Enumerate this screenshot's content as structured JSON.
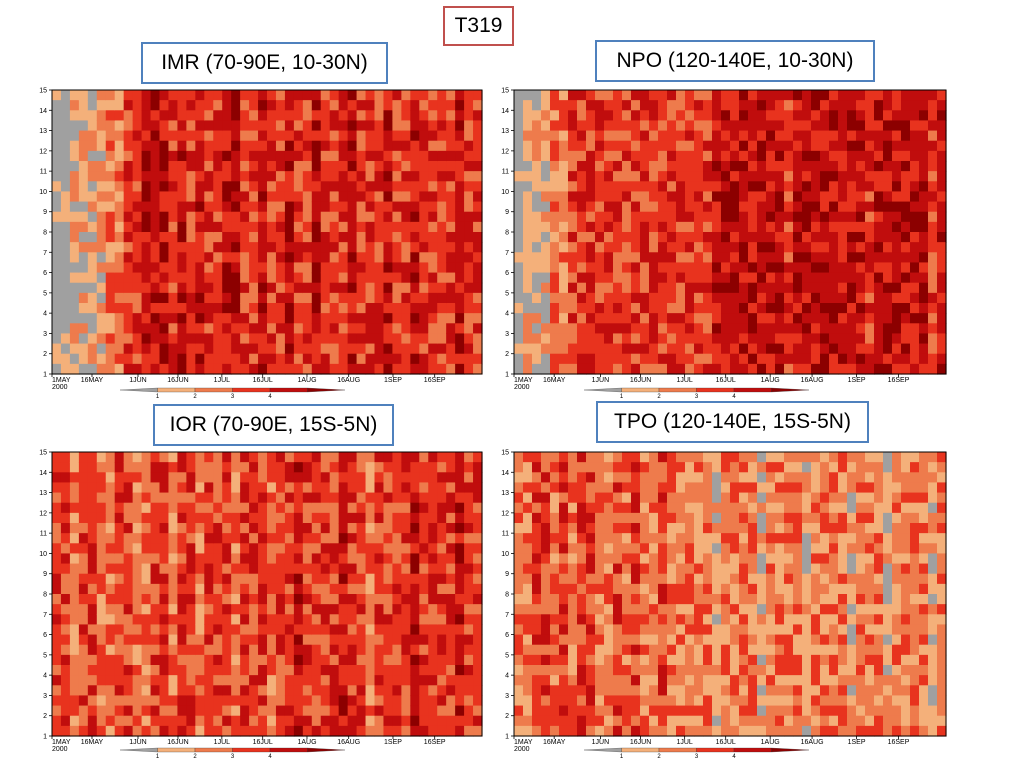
{
  "title": "T319",
  "colors": {
    "title_border": "#c0504d",
    "panel_border": "#4f81bd",
    "levels": [
      "#a0a0a0",
      "#f4b07a",
      "#ee7b4c",
      "#e8331e",
      "#c00d0d",
      "#8c0000"
    ]
  },
  "chart_data": [
    {
      "type": "heatmap",
      "title": "IMR (70-90E, 10-30N)",
      "x_ticks": [
        "1MAY\n2000",
        "16MAY",
        "1JUN",
        "16JUN",
        "1JUL",
        "16JUL",
        "1AUG",
        "16AUG",
        "1SEP",
        "16SEP"
      ],
      "y_ticks": [
        "1",
        "2",
        "3",
        "4",
        "5",
        "6",
        "7",
        "8",
        "9",
        "10",
        "11",
        "12",
        "13",
        "14",
        "15"
      ],
      "ylim": [
        1,
        15
      ],
      "colorbar_labels": [
        "1",
        "2",
        "3",
        "4"
      ],
      "column_intensity": [
        0,
        0,
        1,
        1,
        1,
        1,
        2,
        2,
        3,
        3,
        4,
        4,
        4,
        3,
        4,
        3,
        4,
        3,
        3,
        4,
        4,
        3,
        3,
        4,
        3,
        3,
        4,
        3,
        3,
        4,
        3,
        3,
        3,
        4,
        3,
        3,
        3,
        4,
        3,
        3,
        4,
        3,
        3,
        3,
        3,
        4,
        3,
        3
      ]
    },
    {
      "type": "heatmap",
      "title": "NPO (120-140E, 10-30N)",
      "x_ticks": [
        "1MAY\n2000",
        "16MAY",
        "1JUN",
        "16JUN",
        "1JUL",
        "16JUL",
        "1AUG",
        "16AUG",
        "1SEP",
        "16SEP"
      ],
      "y_ticks": [
        "1",
        "2",
        "3",
        "4",
        "5",
        "6",
        "7",
        "8",
        "9",
        "10",
        "11",
        "12",
        "13",
        "14",
        "15"
      ],
      "ylim": [
        1,
        15
      ],
      "colorbar_labels": [
        "1",
        "2",
        "3",
        "4"
      ],
      "column_intensity": [
        0,
        1,
        1,
        1,
        2,
        2,
        3,
        3,
        3,
        3,
        3,
        3,
        3,
        3,
        3,
        3,
        3,
        3,
        3,
        3,
        3,
        3,
        4,
        4,
        4,
        4,
        4,
        4,
        4,
        4,
        3,
        4,
        4,
        4,
        4,
        4,
        4,
        4,
        4,
        3,
        4,
        4,
        4,
        4,
        4,
        4,
        3,
        4
      ]
    },
    {
      "type": "heatmap",
      "title": "IOR (70-90E, 15S-5N)",
      "x_ticks": [
        "1MAY\n2000",
        "16MAY",
        "1JUN",
        "16JUN",
        "1JUL",
        "16JUL",
        "1AUG",
        "16AUG",
        "1SEP",
        "16SEP"
      ],
      "y_ticks": [
        "1",
        "2",
        "3",
        "4",
        "5",
        "6",
        "7",
        "8",
        "9",
        "10",
        "11",
        "12",
        "13",
        "14",
        "15"
      ],
      "ylim": [
        1,
        15
      ],
      "colorbar_labels": [
        "1",
        "2",
        "3",
        "4"
      ],
      "column_intensity": [
        3,
        3,
        2,
        3,
        3,
        2,
        2,
        3,
        3,
        2,
        2,
        3,
        3,
        2,
        3,
        3,
        2,
        3,
        3,
        3,
        2,
        3,
        3,
        3,
        2,
        3,
        3,
        4,
        3,
        3,
        3,
        3,
        4,
        3,
        3,
        2,
        3,
        3,
        3,
        3,
        4,
        3,
        3,
        3,
        3,
        4,
        3,
        3
      ]
    },
    {
      "type": "heatmap",
      "title": "TPO (120-140E, 15S-5N)",
      "x_ticks": [
        "1MAY\n2000",
        "16MAY",
        "1JUN",
        "16JUN",
        "1JUL",
        "16JUL",
        "1AUG",
        "16AUG",
        "1SEP",
        "16SEP"
      ],
      "y_ticks": [
        "1",
        "2",
        "3",
        "4",
        "5",
        "6",
        "7",
        "8",
        "9",
        "10",
        "11",
        "12",
        "13",
        "14",
        "15"
      ],
      "ylim": [
        1,
        15
      ],
      "colorbar_labels": [
        "1",
        "2",
        "3",
        "4"
      ],
      "column_intensity": [
        2,
        2,
        3,
        3,
        2,
        3,
        2,
        3,
        3,
        2,
        2,
        3,
        2,
        3,
        2,
        2,
        3,
        2,
        2,
        2,
        2,
        2,
        1,
        2,
        2,
        2,
        2,
        1,
        2,
        2,
        2,
        2,
        1,
        2,
        2,
        2,
        2,
        1,
        2,
        2,
        2,
        1,
        2,
        2,
        2,
        2,
        1,
        2
      ]
    }
  ]
}
